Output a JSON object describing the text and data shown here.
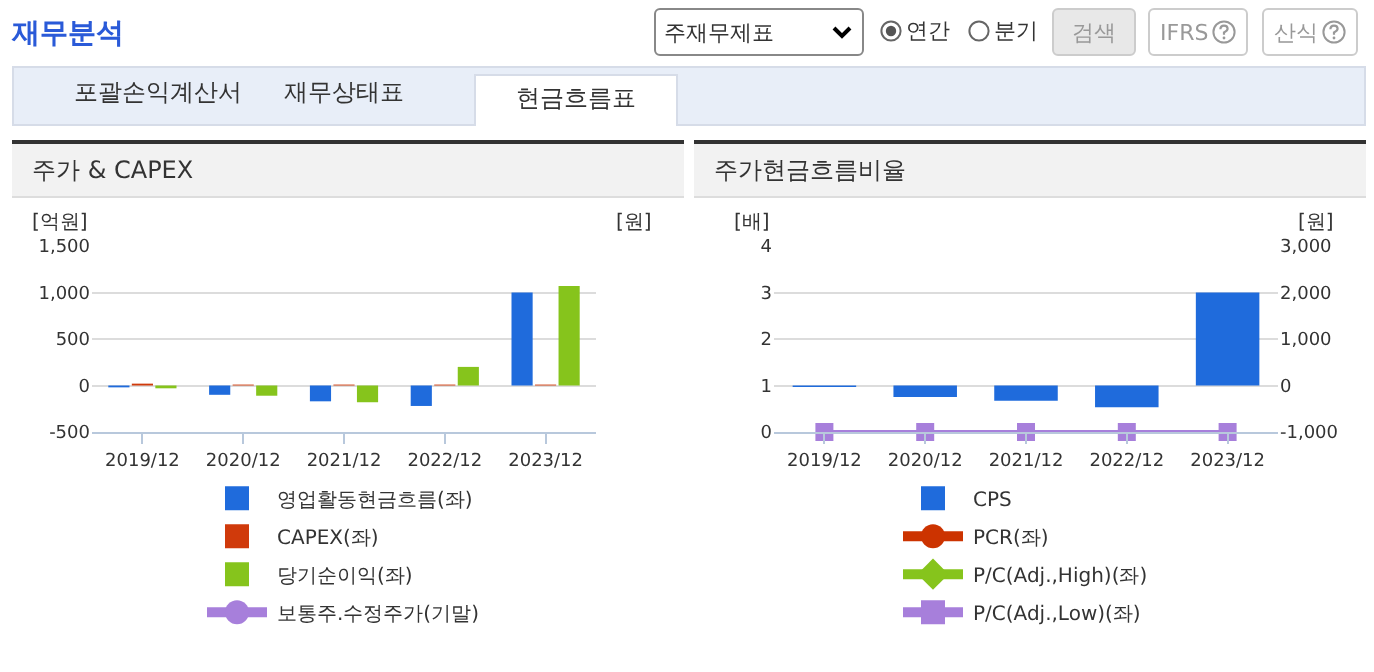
{
  "chart_data": [
    {
      "type": "other",
      "title": "재무분석",
      "annotations": [
        "주재무제표",
        "연간",
        "분기",
        "검색",
        "IFRS",
        "산식",
        "포괄손익계산서",
        "재무상태표",
        "현금흐름표"
      ]
    },
    {
      "type": "bar",
      "title": "주가 & CAPEX",
      "ylabel": "[억원]",
      "y2label": "[원]",
      "categories": [
        "2019/12",
        "2020/12",
        "2021/12",
        "2022/12",
        "2023/12"
      ],
      "ylim": [
        -500,
        1500
      ],
      "yticks": [
        -500,
        0,
        {
          "value": 500,
          "label": "500"
        },
        {
          "value": 1000,
          "label": "1,000"
        },
        {
          "value": 1500,
          "label": "1,500"
        }
      ],
      "grid": "y",
      "legend": "bottom",
      "series": [
        {
          "name": "영업활동현금흐름(좌)",
          "color": "#1f6bdc",
          "values": [
            -20,
            -100,
            -170,
            -220,
            1000
          ]
        },
        {
          "name": "CAPEX(좌)",
          "color": "#d03a0b",
          "values": [
            20,
            10,
            10,
            10,
            10
          ]
        },
        {
          "name": "당기순이익(좌)",
          "color": "#86c41c",
          "values": [
            -30,
            -110,
            -180,
            200,
            1070
          ]
        },
        {
          "name": "보통주.수정주가(기말)",
          "type": "line",
          "axis": "y2",
          "marker": "circle",
          "color": "#a77fdb",
          "values": [
            null,
            null,
            null,
            null,
            null
          ]
        }
      ]
    },
    {
      "type": "bar",
      "title": "주가현금흐름비율",
      "ylabel": "[배]",
      "y2label": "[원]",
      "categories": [
        "2019/12",
        "2020/12",
        "2021/12",
        "2022/12",
        "2023/12"
      ],
      "ylim": [
        0,
        4
      ],
      "yticks": [
        0,
        1,
        2,
        3,
        4
      ],
      "y2lim": [
        -1000,
        3000
      ],
      "y2ticks": [
        {
          "value": -1000,
          "label": "-1,000"
        },
        0,
        {
          "value": 1000,
          "label": "1,000"
        },
        {
          "value": 2000,
          "label": "2,000"
        },
        {
          "value": 3000,
          "label": "3,000"
        }
      ],
      "grid": "y",
      "legend": "bottom",
      "series": [
        {
          "name": "CPS",
          "color": "#1f6bdc",
          "axis": "y2",
          "values": [
            -30,
            -250,
            -330,
            -470,
            2000
          ]
        },
        {
          "name": "PCR(좌)",
          "type": "line",
          "marker": "circle",
          "color": "#cc3300",
          "values": [
            null,
            null,
            null,
            null,
            null
          ]
        },
        {
          "name": "P/C(Adj.,High)(좌)",
          "type": "line",
          "marker": "diamond",
          "color": "#86c41c",
          "values": [
            null,
            null,
            null,
            null,
            null
          ]
        },
        {
          "name": "P/C(Adj.,Low)(좌)",
          "type": "line",
          "marker": "square",
          "color": "#a77fdb",
          "values": [
            0,
            0,
            0,
            0,
            0
          ]
        }
      ]
    }
  ]
}
